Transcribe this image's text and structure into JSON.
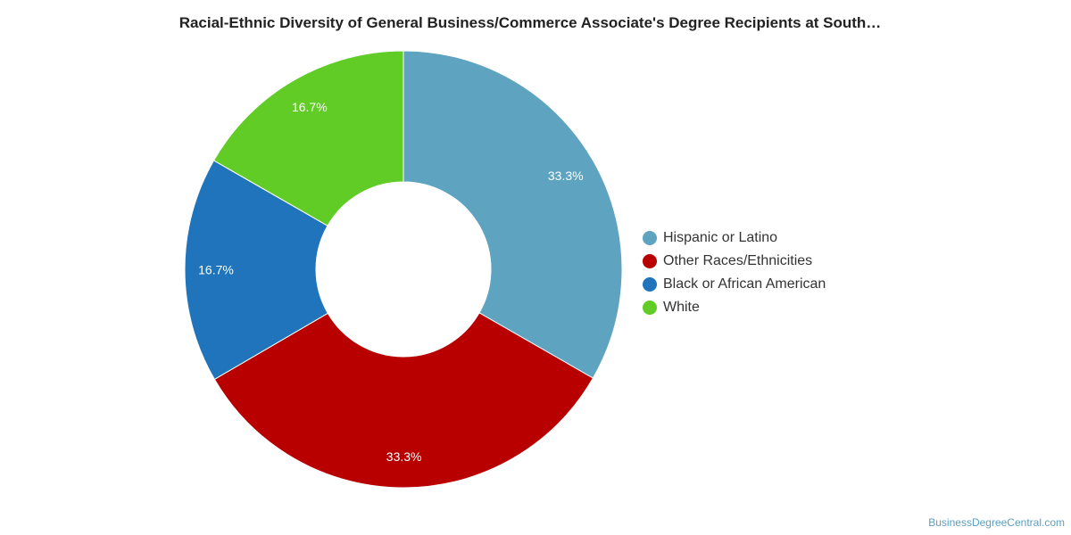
{
  "chart_data": {
    "type": "pie",
    "style": "donut",
    "title": "Racial-Ethnic Diversity of General Business/Commerce Associate's Degree Recipients at South…",
    "slices": [
      {
        "name": "Hispanic or Latino",
        "value": 33.3,
        "label": "33.3%",
        "color": "#5ea3c0"
      },
      {
        "name": "Other Races/Ethnicities",
        "value": 33.3,
        "label": "33.3%",
        "color": "#b80000"
      },
      {
        "name": "Black or African American",
        "value": 16.7,
        "label": "16.7%",
        "color": "#1f74bb"
      },
      {
        "name": "White",
        "value": 16.7,
        "label": "16.7%",
        "color": "#62cc26"
      }
    ],
    "legend_position": "right"
  },
  "credit": "BusinessDegreeCentral.com"
}
